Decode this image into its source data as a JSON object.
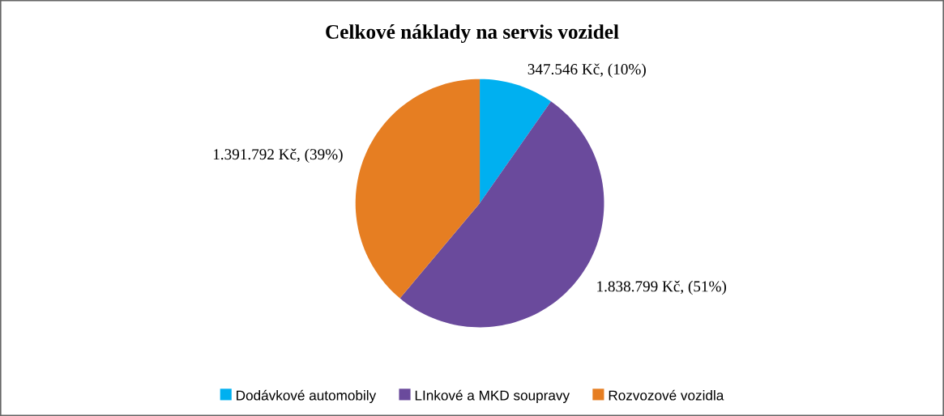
{
  "chart_data": {
    "type": "pie",
    "title": "Celkové náklady na servis vozidel",
    "categories": [
      "Dodávkové automobily",
      "LInkové a MKD soupravy",
      "Rozvozové vozidla"
    ],
    "values": [
      347546,
      1838799,
      1391792
    ],
    "value_labels": [
      "347.546 Kč, (10%)",
      "1.838.799 Kč, (51%)",
      "1.391.792 Kč, (39%)"
    ],
    "colors": [
      "#00b0f0",
      "#6a4a9c",
      "#e67e22"
    ],
    "legend": "bottom"
  }
}
